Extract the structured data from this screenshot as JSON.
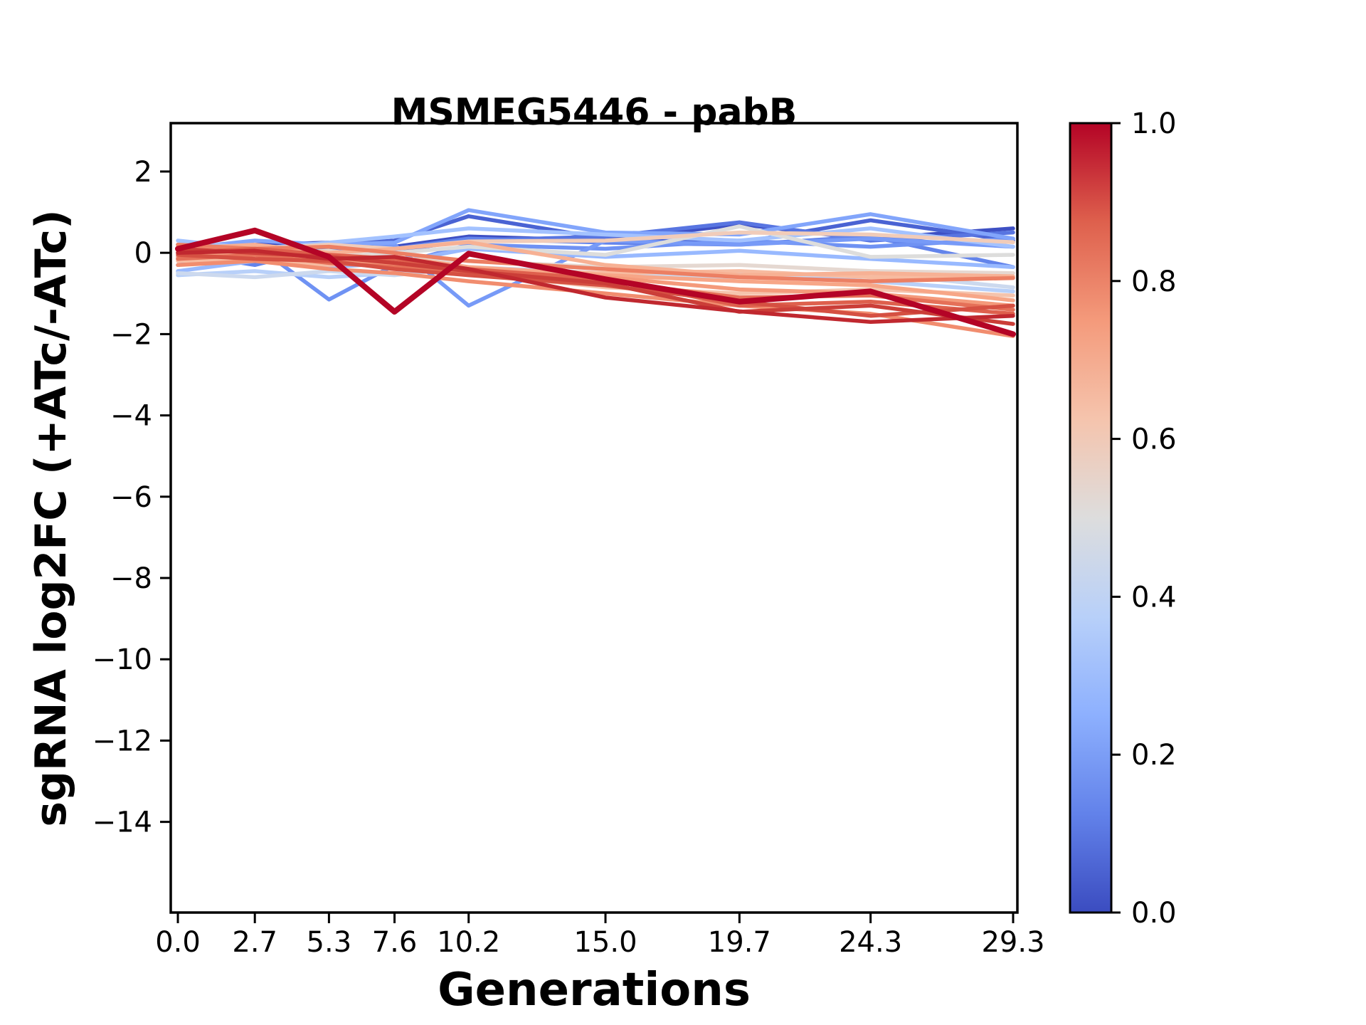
{
  "chart_data": {
    "type": "line",
    "title": "MSMEG5446 - pabB",
    "xlabel": "Generations",
    "ylabel": "sgRNA log2FC (+ATc/-ATc)",
    "x": [
      0.0,
      2.7,
      5.3,
      7.6,
      10.2,
      15.0,
      19.7,
      24.3,
      29.3
    ],
    "xtick_labels": [
      "0.0",
      "2.7",
      "5.3",
      "7.6",
      "10.2",
      "15.0",
      "19.7",
      "24.3",
      "29.3"
    ],
    "yticks": [
      2,
      0,
      -2,
      -4,
      -6,
      -8,
      -10,
      -12,
      -14
    ],
    "ytick_labels": [
      "2",
      "0",
      "−2",
      "−4",
      "−6",
      "−8",
      "−10",
      "−12",
      "−14"
    ],
    "xlim": [
      -0.25,
      29.45
    ],
    "ylim": [
      -16.23,
      3.19
    ],
    "grid": false,
    "legend": "none",
    "background": "#ffffff",
    "axis_color": "#000000",
    "colorbar": {
      "min": 0.0,
      "max": 1.0,
      "colormap": "coolwarm",
      "label_values": [
        "1.0",
        "0.8",
        "0.6",
        "0.4",
        "0.2",
        "0.0"
      ],
      "stops": [
        {
          "pos": 1.0,
          "color": "#B40426"
        },
        {
          "pos": 0.875,
          "color": "#DE604D"
        },
        {
          "pos": 0.75,
          "color": "#F49A7B"
        },
        {
          "pos": 0.625,
          "color": "#F5C4AD"
        },
        {
          "pos": 0.5,
          "color": "#DDDDDD"
        },
        {
          "pos": 0.375,
          "color": "#B8D0F9"
        },
        {
          "pos": 0.25,
          "color": "#8DB0FE"
        },
        {
          "pos": 0.125,
          "color": "#6282EA"
        },
        {
          "pos": 0.0,
          "color": "#3B4CC0"
        }
      ]
    },
    "series": [
      {
        "colormap_value": 0.02,
        "color": "#3E50C4",
        "width": 5.5,
        "values": [
          0.1,
          0.2,
          0.25,
          0.15,
          0.4,
          0.3,
          0.7,
          0.35,
          0.6
        ]
      },
      {
        "colormap_value": 0.08,
        "color": "#4A63D3",
        "width": 5.5,
        "values": [
          -0.1,
          0.1,
          0.2,
          0.3,
          0.9,
          0.35,
          0.25,
          0.8,
          0.3
        ]
      },
      {
        "colormap_value": 0.13,
        "color": "#5875E1",
        "width": 5.5,
        "values": [
          0.2,
          0.0,
          0.1,
          0.05,
          0.3,
          0.4,
          0.75,
          0.3,
          0.5
        ]
      },
      {
        "colormap_value": 0.19,
        "color": "#6384EB",
        "width": 5.5,
        "values": [
          0.0,
          -0.3,
          0.15,
          0.1,
          0.35,
          0.25,
          0.2,
          0.4,
          -0.35
        ]
      },
      {
        "colormap_value": 0.25,
        "color": "#6F92F3",
        "width": 5.5,
        "values": [
          -0.15,
          0.2,
          -1.15,
          -0.3,
          0.2,
          0.1,
          0.3,
          0.15,
          0.35
        ]
      },
      {
        "colormap_value": 0.27,
        "color": "#779AF7",
        "width": 5.5,
        "values": [
          -0.3,
          -0.1,
          0.0,
          0.2,
          -1.3,
          0.3,
          0.2,
          0.35,
          0.15
        ]
      },
      {
        "colormap_value": 0.3,
        "color": "#82A5FB",
        "width": 5.5,
        "values": [
          0.1,
          0.3,
          0.2,
          0.25,
          1.05,
          0.5,
          0.45,
          0.95,
          0.35
        ]
      },
      {
        "colormap_value": 0.34,
        "color": "#98B9FF",
        "width": 5.5,
        "values": [
          -0.45,
          -0.2,
          -0.35,
          -0.25,
          0.1,
          -0.1,
          0.05,
          -0.15,
          -0.35
        ]
      },
      {
        "colormap_value": 0.38,
        "color": "#A3C2FF",
        "width": 5.5,
        "values": [
          0.3,
          0.1,
          0.25,
          0.4,
          0.6,
          0.45,
          0.3,
          0.6,
          0.15
        ]
      },
      {
        "colormap_value": 0.42,
        "color": "#B8D0F9",
        "width": 5.5,
        "values": [
          -0.55,
          -0.45,
          -0.6,
          -0.5,
          -0.4,
          -0.55,
          -0.5,
          -0.7,
          -0.95
        ]
      },
      {
        "colormap_value": 0.46,
        "color": "#CCD9EE",
        "width": 5.5,
        "values": [
          -0.5,
          -0.6,
          -0.45,
          -0.55,
          -0.35,
          -0.5,
          -0.6,
          -0.5,
          -0.85
        ]
      },
      {
        "colormap_value": 0.5,
        "color": "#DDDDDC",
        "width": 5.5,
        "values": [
          0.2,
          0.05,
          -0.1,
          0.0,
          0.15,
          -0.05,
          0.65,
          -0.1,
          -0.05
        ]
      },
      {
        "colormap_value": 0.54,
        "color": "#E5D8D1",
        "width": 5.5,
        "values": [
          0.1,
          -0.05,
          0.05,
          -0.15,
          -0.2,
          -0.35,
          -0.3,
          -0.45,
          -0.5
        ]
      },
      {
        "colormap_value": 0.58,
        "color": "#F1CCB9",
        "width": 5.5,
        "values": [
          0.15,
          0.1,
          0.2,
          0.1,
          0.28,
          0.3,
          0.5,
          0.45,
          0.26
        ]
      },
      {
        "colormap_value": 0.62,
        "color": "#F5C4AD",
        "width": 5.5,
        "values": [
          0.0,
          -0.1,
          -0.15,
          -0.25,
          -0.5,
          -0.85,
          -1.0,
          -0.9,
          -1.05
        ]
      },
      {
        "colormap_value": 0.66,
        "color": "#F7BBA0",
        "width": 5.5,
        "values": [
          -0.2,
          -0.15,
          -0.3,
          -0.2,
          -0.4,
          -0.5,
          -0.45,
          -0.6,
          -0.6
        ]
      },
      {
        "colormap_value": 0.7,
        "color": "#F7B194",
        "width": 5.5,
        "values": [
          0.1,
          0.2,
          0.0,
          0.1,
          0.26,
          -0.3,
          -0.55,
          -0.5,
          -0.58
        ]
      },
      {
        "colormap_value": 0.73,
        "color": "#F7A687",
        "width": 5.5,
        "values": [
          -0.1,
          0.0,
          -0.2,
          -0.1,
          -0.35,
          -0.55,
          -0.7,
          -0.8,
          -1.17
        ]
      },
      {
        "colormap_value": 0.76,
        "color": "#F49A7B",
        "width": 5.5,
        "values": [
          0.05,
          -0.2,
          -0.1,
          -0.3,
          -0.45,
          -0.6,
          -0.9,
          -1.0,
          -1.3
        ]
      },
      {
        "colormap_value": 0.79,
        "color": "#F18D6F",
        "width": 5.5,
        "values": [
          -0.3,
          -0.2,
          -0.4,
          -0.5,
          -0.7,
          -1.0,
          -1.3,
          -1.5,
          -2.05
        ]
      },
      {
        "colormap_value": 0.82,
        "color": "#EC7F63",
        "width": 5.5,
        "values": [
          0.2,
          0.1,
          0.15,
          0.0,
          -0.2,
          -0.4,
          -0.6,
          -0.7,
          -0.62
        ]
      },
      {
        "colormap_value": 0.85,
        "color": "#E57058",
        "width": 5.5,
        "values": [
          -0.15,
          -0.05,
          -0.25,
          -0.35,
          -0.5,
          -0.7,
          -1.1,
          -1.05,
          -1.4
        ]
      },
      {
        "colormap_value": 0.88,
        "color": "#DE604D",
        "width": 5.5,
        "values": [
          0.0,
          0.1,
          -0.05,
          -0.15,
          -0.4,
          -0.65,
          -1.3,
          -1.2,
          -1.5
        ]
      },
      {
        "colormap_value": 0.91,
        "color": "#D55042",
        "width": 5.5,
        "values": [
          -0.05,
          -0.15,
          -0.2,
          -0.4,
          -0.55,
          -0.8,
          -1.2,
          -1.55,
          -1.3
        ]
      },
      {
        "colormap_value": 0.94,
        "color": "#CB3E38",
        "width": 5.5,
        "values": [
          0.1,
          0.0,
          -0.1,
          -0.25,
          -0.45,
          -0.75,
          -1.45,
          -1.3,
          -1.75
        ]
      },
      {
        "colormap_value": 0.96,
        "color": "#C0282F",
        "width": 5.5,
        "values": [
          0.0,
          0.05,
          -0.15,
          -0.1,
          -0.4,
          -1.1,
          -1.44,
          -1.7,
          -1.55
        ]
      },
      {
        "colormap_value": 1.0,
        "color": "#B40426",
        "width": 8,
        "values": [
          0.1,
          0.55,
          -0.1,
          -1.45,
          -0.02,
          -0.65,
          -1.2,
          -0.95,
          -2.0
        ]
      }
    ]
  }
}
